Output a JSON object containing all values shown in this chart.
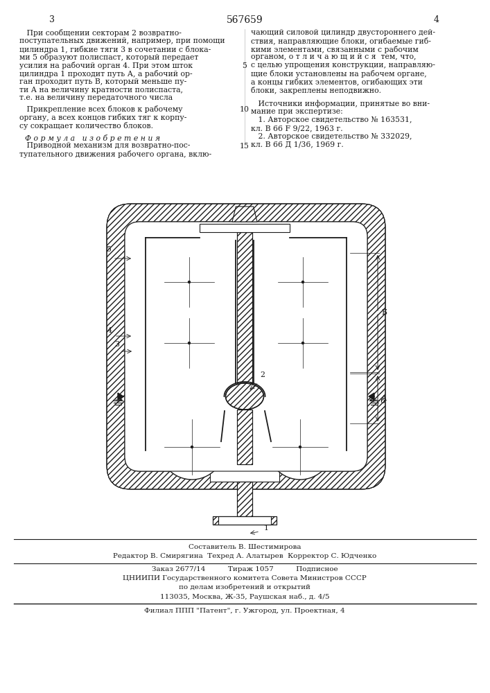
{
  "page_number_center": "567659",
  "page_num_left": "3",
  "page_num_right": "4",
  "bg_color": "#ffffff",
  "text_color": "#1a1a1a",
  "left_col_lines": [
    "   При сообщении секторам 2 возвратно-",
    "поступательных движений, например, при помощи",
    "цилиндра 1, гибкие тяги 3 в сочетании с блока-",
    "ми 5 образуют полиспаст, который передает",
    "усилия на рабочий орган 4. При этом шток",
    "цилиндра 1 проходит путь А, а рабочий ор-",
    "ган проходит путь В, который меньше пу-",
    "ти А на величину кратности полиспаста,",
    "т.е. на величину передаточного числа"
  ],
  "left_col_lines2": [
    "   Прикрепление всех блоков к рабочему",
    "органу, а всех концов гибких тяг к корпу-",
    "су сокращает количество блоков."
  ],
  "formula_header": "Ф о р м у л а   и з о б р е т е н и я",
  "formula_lines": [
    "   Приводной механизм для возвратно-пос-",
    "тупательного движения рабочего органа, вклю-"
  ],
  "right_col_lines": [
    "чающий силовой цилиндр двустороннего дей-",
    "ствия, направляющие блоки, огибаемые гиб-",
    "кими элементами, связанными с рабочим",
    "органом, о т л и ч а ю щ и й с я  тем, что,",
    "с целью упрощения конструкции, направляю-",
    "щие блоки установлены на рабочем органе,",
    "а концы гибких элементов, огибающих эти",
    "блоки, закреплены неподвижно."
  ],
  "sources_header": "   Источники информации, принятые во вни-",
  "sources_lines": [
    "мание при экспертизе:",
    "   1. Авторское свидетельство № 163531,",
    "кл. В 66 F 9/22, 1963 г.",
    "   2. Авторское свидетельство № 332029,",
    "кл. В 66 Д 1/36, 1969 г."
  ],
  "footer_lines": [
    "Составитель В. Шестимирова",
    "Редактор В. Смирягина  Техред А. Алатырев  Корректор С. Юдченко",
    "Заказ 2677/14          Тираж 1057          Подписное",
    "ЦНИИПИ Государственного комитета Совета Министров СССР",
    "по делам изобретений и открытий",
    "113035, Москва, Ж-35, Раушская наб., д. 4/5",
    "Филиал ППП \"Патент\", г. Ужгород, ул. Проектная, 4"
  ]
}
